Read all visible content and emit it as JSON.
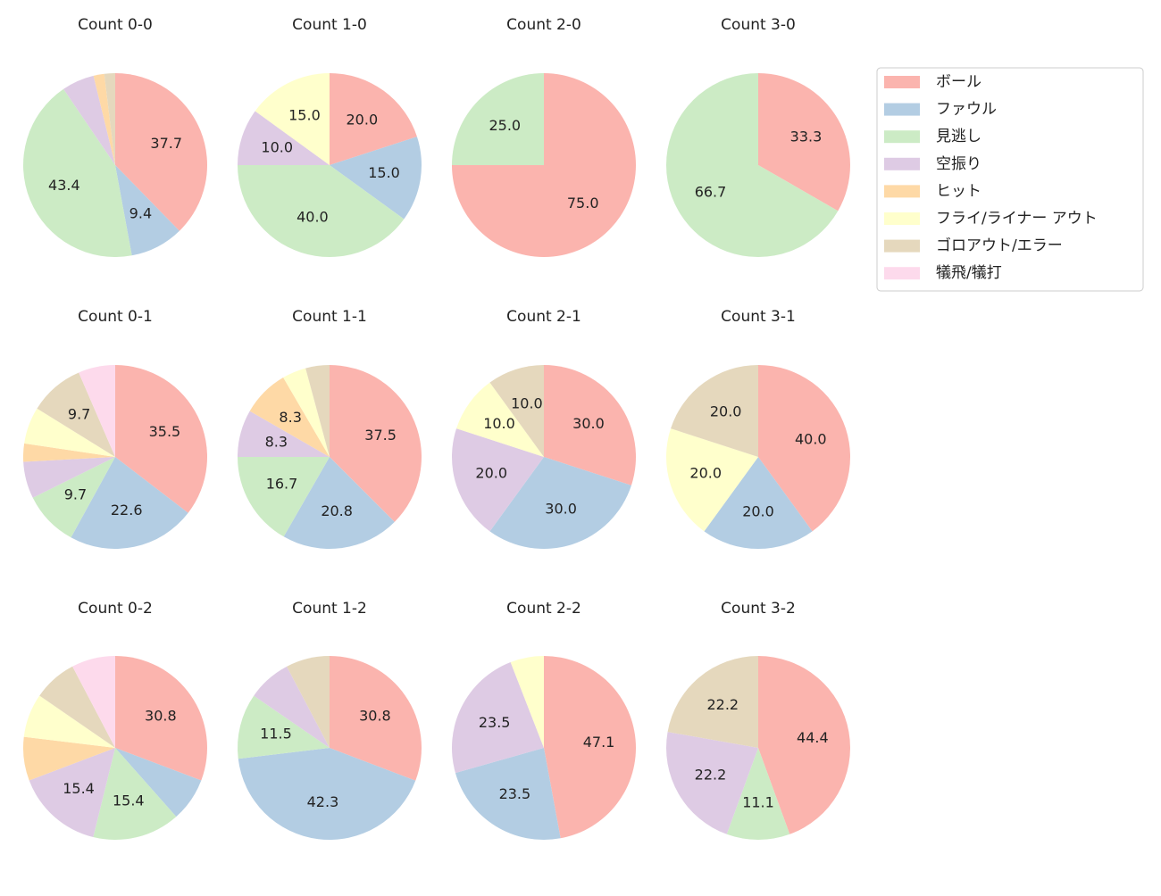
{
  "chart_data": [
    {
      "type": "pie",
      "title": "Count 0-0",
      "categories": [
        "ボール",
        "ファウル",
        "見逃し",
        "空振り",
        "ヒット",
        "フライ/ライナー アウト",
        "ゴロアウト/エラー",
        "犠飛/犠打"
      ],
      "colors": [
        "#fbb4ae",
        "#b3cde3",
        "#ccebc5",
        "#decbe4",
        "#fed9a6",
        "#ffffcc",
        "#e5d8bd",
        "#fddaec"
      ],
      "values": [
        37.7,
        9.4,
        43.4,
        5.7,
        1.9,
        0,
        1.9,
        0
      ],
      "legend": true
    },
    {
      "type": "pie",
      "title": "Count 1-0",
      "categories": [
        "ボール",
        "ファウル",
        "見逃し",
        "空振り",
        "ヒット",
        "フライ/ライナー アウト",
        "ゴロアウト/エラー",
        "犠飛/犠打"
      ],
      "colors": [
        "#fbb4ae",
        "#b3cde3",
        "#ccebc5",
        "#decbe4",
        "#fed9a6",
        "#ffffcc",
        "#e5d8bd",
        "#fddaec"
      ],
      "values": [
        20.0,
        15.0,
        40.0,
        10.0,
        0,
        15.0,
        0,
        0
      ]
    },
    {
      "type": "pie",
      "title": "Count 2-0",
      "categories": [
        "ボール",
        "ファウル",
        "見逃し",
        "空振り",
        "ヒット",
        "フライ/ライナー アウト",
        "ゴロアウト/エラー",
        "犠飛/犠打"
      ],
      "colors": [
        "#fbb4ae",
        "#b3cde3",
        "#ccebc5",
        "#decbe4",
        "#fed9a6",
        "#ffffcc",
        "#e5d8bd",
        "#fddaec"
      ],
      "values": [
        75.0,
        0,
        25.0,
        0,
        0,
        0,
        0,
        0
      ]
    },
    {
      "type": "pie",
      "title": "Count 3-0",
      "categories": [
        "ボール",
        "ファウル",
        "見逃し",
        "空振り",
        "ヒット",
        "フライ/ライナー アウト",
        "ゴロアウト/エラー",
        "犠飛/犠打"
      ],
      "colors": [
        "#fbb4ae",
        "#b3cde3",
        "#ccebc5",
        "#decbe4",
        "#fed9a6",
        "#ffffcc",
        "#e5d8bd",
        "#fddaec"
      ],
      "values": [
        33.3,
        0,
        66.7,
        0,
        0,
        0,
        0,
        0
      ]
    },
    {
      "type": "pie",
      "title": "Count 0-1",
      "categories": [
        "ボール",
        "ファウル",
        "見逃し",
        "空振り",
        "ヒット",
        "フライ/ライナー アウト",
        "ゴロアウト/エラー",
        "犠飛/犠打"
      ],
      "colors": [
        "#fbb4ae",
        "#b3cde3",
        "#ccebc5",
        "#decbe4",
        "#fed9a6",
        "#ffffcc",
        "#e5d8bd",
        "#fddaec"
      ],
      "values": [
        35.5,
        22.6,
        9.7,
        6.5,
        3.2,
        6.5,
        9.7,
        6.5
      ]
    },
    {
      "type": "pie",
      "title": "Count 1-1",
      "categories": [
        "ボール",
        "ファウル",
        "見逃し",
        "空振り",
        "ヒット",
        "フライ/ライナー アウト",
        "ゴロアウト/エラー",
        "犠飛/犠打"
      ],
      "colors": [
        "#fbb4ae",
        "#b3cde3",
        "#ccebc5",
        "#decbe4",
        "#fed9a6",
        "#ffffcc",
        "#e5d8bd",
        "#fddaec"
      ],
      "values": [
        37.5,
        20.8,
        16.7,
        8.3,
        8.3,
        4.2,
        4.2,
        0
      ]
    },
    {
      "type": "pie",
      "title": "Count 2-1",
      "categories": [
        "ボール",
        "ファウル",
        "見逃し",
        "空振り",
        "ヒット",
        "フライ/ライナー アウト",
        "ゴロアウト/エラー",
        "犠飛/犠打"
      ],
      "colors": [
        "#fbb4ae",
        "#b3cde3",
        "#ccebc5",
        "#decbe4",
        "#fed9a6",
        "#ffffcc",
        "#e5d8bd",
        "#fddaec"
      ],
      "values": [
        30.0,
        30.0,
        0,
        20.0,
        0,
        10.0,
        10.0,
        0
      ]
    },
    {
      "type": "pie",
      "title": "Count 3-1",
      "categories": [
        "ボール",
        "ファウル",
        "見逃し",
        "空振り",
        "ヒット",
        "フライ/ライナー アウト",
        "ゴロアウト/エラー",
        "犠飛/犠打"
      ],
      "colors": [
        "#fbb4ae",
        "#b3cde3",
        "#ccebc5",
        "#decbe4",
        "#fed9a6",
        "#ffffcc",
        "#e5d8bd",
        "#fddaec"
      ],
      "values": [
        40.0,
        20.0,
        0,
        0,
        0,
        20.0,
        20.0,
        0
      ]
    },
    {
      "type": "pie",
      "title": "Count 0-2",
      "categories": [
        "ボール",
        "ファウル",
        "見逃し",
        "空振り",
        "ヒット",
        "フライ/ライナー アウト",
        "ゴロアウト/エラー",
        "犠飛/犠打"
      ],
      "colors": [
        "#fbb4ae",
        "#b3cde3",
        "#ccebc5",
        "#decbe4",
        "#fed9a6",
        "#ffffcc",
        "#e5d8bd",
        "#fddaec"
      ],
      "values": [
        30.8,
        7.7,
        15.4,
        15.4,
        7.7,
        7.7,
        7.7,
        7.7
      ]
    },
    {
      "type": "pie",
      "title": "Count 1-2",
      "categories": [
        "ボール",
        "ファウル",
        "見逃し",
        "空振り",
        "ヒット",
        "フライ/ライナー アウト",
        "ゴロアウト/エラー",
        "犠飛/犠打"
      ],
      "colors": [
        "#fbb4ae",
        "#b3cde3",
        "#ccebc5",
        "#decbe4",
        "#fed9a6",
        "#ffffcc",
        "#e5d8bd",
        "#fddaec"
      ],
      "values": [
        30.8,
        42.3,
        11.5,
        7.7,
        0,
        0,
        7.7,
        0
      ]
    },
    {
      "type": "pie",
      "title": "Count 2-2",
      "categories": [
        "ボール",
        "ファウル",
        "見逃し",
        "空振り",
        "ヒット",
        "フライ/ライナー アウト",
        "ゴロアウト/エラー",
        "犠飛/犠打"
      ],
      "colors": [
        "#fbb4ae",
        "#b3cde3",
        "#ccebc5",
        "#decbe4",
        "#fed9a6",
        "#ffffcc",
        "#e5d8bd",
        "#fddaec"
      ],
      "values": [
        47.1,
        23.5,
        0,
        23.5,
        0,
        5.9,
        0,
        0
      ]
    },
    {
      "type": "pie",
      "title": "Count 3-2",
      "categories": [
        "ボール",
        "ファウル",
        "見逃し",
        "空振り",
        "ヒット",
        "フライ/ライナー アウト",
        "ゴロアウト/エラー",
        "犠飛/犠打"
      ],
      "colors": [
        "#fbb4ae",
        "#b3cde3",
        "#ccebc5",
        "#decbe4",
        "#fed9a6",
        "#ffffcc",
        "#e5d8bd",
        "#fddaec"
      ],
      "values": [
        44.4,
        0,
        11.1,
        22.2,
        0,
        0,
        22.2,
        0
      ]
    }
  ]
}
